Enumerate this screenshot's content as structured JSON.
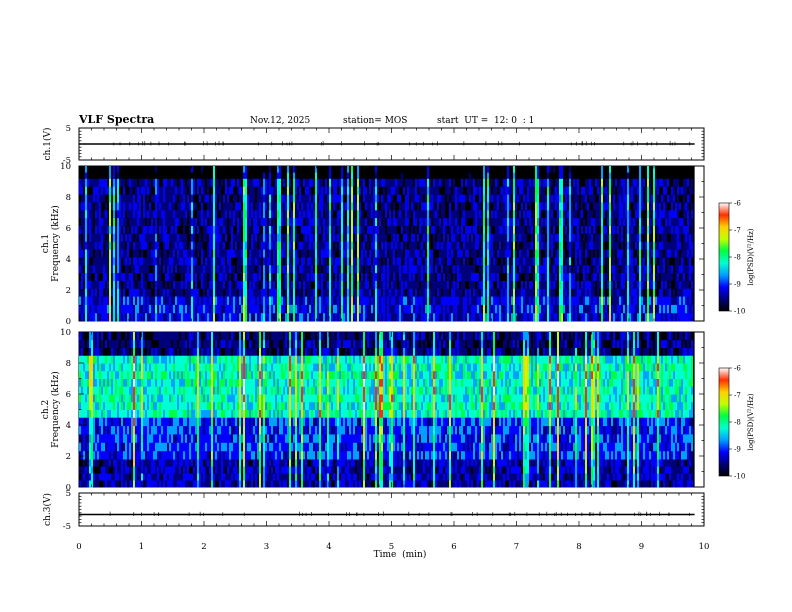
{
  "header": {
    "title": "VLF Spectra",
    "date": "Nov.12, 2025",
    "station": "station= MOS",
    "start_ut": "start  UT =  12: 0  : 1"
  },
  "colors": {
    "spec": [
      "#000000",
      "#00007a",
      "#0000ff",
      "#00a0ff",
      "#00ffd0",
      "#00ff40",
      "#c0ff00",
      "#ffd000",
      "#ff3000",
      "#ffffff"
    ]
  },
  "chart_data": [
    {
      "type": "line",
      "name": "ch1-waveform",
      "ylabel": "ch.1(V)",
      "ylim": [
        -5,
        5
      ],
      "y_ticks": [
        "5",
        "-5"
      ],
      "x": [
        0,
        9.85
      ],
      "values": [
        0,
        0
      ]
    },
    {
      "type": "heatmap",
      "name": "ch1-spectrogram",
      "ylabel": "ch.1\nFrequency (kHz)",
      "ylabel_lines": [
        "ch.1",
        "Frequency (kHz)"
      ],
      "ylim": [
        0,
        10
      ],
      "y_ticks": [
        "0",
        "2",
        "4",
        "6",
        "8",
        "10"
      ],
      "xlim": [
        0,
        10
      ],
      "data_xmax": 9.85,
      "colorbar": {
        "label": "log(PSD)(V²/Hz)",
        "ticks": [
          "-6",
          "-7",
          "-8",
          "-9",
          "-10"
        ],
        "range": [
          -10,
          -6
        ]
      },
      "mean_level": -9.2,
      "bands": [
        {
          "f": [
            0,
            1.6
          ],
          "level": -9.0
        },
        {
          "f": [
            1.6,
            9.2
          ],
          "level": -9.3
        },
        {
          "f": [
            9.2,
            10
          ],
          "level": -10.0
        }
      ]
    },
    {
      "type": "heatmap",
      "name": "ch2-spectrogram",
      "ylabel": "ch.2\nFrequency (kHz)",
      "ylabel_lines": [
        "ch.2",
        "Frequency (kHz)"
      ],
      "ylim": [
        0,
        10
      ],
      "y_ticks": [
        "0",
        "2",
        "4",
        "6",
        "8",
        "10"
      ],
      "xlim": [
        0,
        10
      ],
      "data_xmax": 9.85,
      "colorbar": {
        "label": "log(PSD)(V²/Hz)",
        "ticks": [
          "-6",
          "-7",
          "-8",
          "-9",
          "-10"
        ],
        "range": [
          -10,
          -6
        ]
      },
      "mean_level": -8.2,
      "bands": [
        {
          "f": [
            0,
            1.8
          ],
          "level": -9.2
        },
        {
          "f": [
            1.8,
            4.5
          ],
          "level": -8.8
        },
        {
          "f": [
            4.5,
            8.5
          ],
          "level": -8.0
        },
        {
          "f": [
            8.5,
            10
          ],
          "level": -9.4
        }
      ]
    },
    {
      "type": "line",
      "name": "ch3-waveform",
      "ylabel": "ch.3(V)",
      "ylim": [
        -5,
        5
      ],
      "y_ticks": [
        "5",
        "-5"
      ],
      "x": [
        0,
        9.85
      ],
      "values": [
        -1.5,
        -1.5
      ]
    }
  ],
  "xaxis": {
    "label": "Time  (min)",
    "ticks": [
      "0",
      "1",
      "2",
      "3",
      "4",
      "5",
      "6",
      "7",
      "8",
      "9",
      "10"
    ],
    "xlim": [
      0,
      10
    ]
  }
}
